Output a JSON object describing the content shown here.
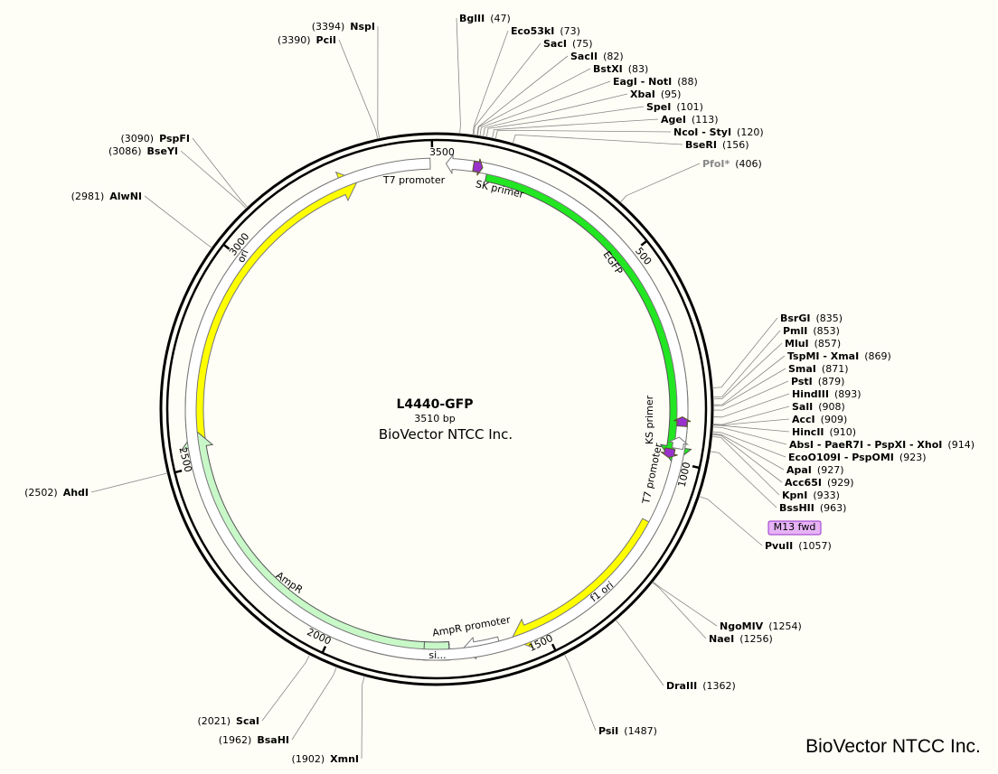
{
  "map": {
    "name": "L4440-GFP",
    "length": "3510 bp",
    "company": "BioVector NTCC Inc.",
    "ticks": [
      500,
      1000,
      1500,
      2000,
      2500,
      3000,
      3500
    ],
    "features": [
      {
        "label": "T7 promoter"
      },
      {
        "label": "SK primer"
      },
      {
        "label": "EGFP"
      },
      {
        "label": "ori"
      },
      {
        "label": "f1 ori"
      },
      {
        "label": "AmpR"
      },
      {
        "label": "AmpR promoter"
      },
      {
        "label": "si..."
      },
      {
        "label": "KS primer"
      },
      {
        "label": "T7 promoter"
      },
      {
        "label": "M13 fwd"
      }
    ],
    "sites": [
      {
        "name": "BglII",
        "pos": "(47)"
      },
      {
        "name": "Eco53kI",
        "pos": "(73)"
      },
      {
        "name": "SacI",
        "pos": "(75)"
      },
      {
        "name": "SacII",
        "pos": "(82)"
      },
      {
        "name": "BstXI",
        "pos": "(83)"
      },
      {
        "name": "EagI - NotI",
        "pos": "(88)"
      },
      {
        "name": "XbaI",
        "pos": "(95)"
      },
      {
        "name": "SpeI",
        "pos": "(101)"
      },
      {
        "name": "AgeI",
        "pos": "(113)"
      },
      {
        "name": "NcoI - StyI",
        "pos": "(120)"
      },
      {
        "name": "BseRI",
        "pos": "(156)"
      },
      {
        "name": "PfoI*",
        "pos": "(406)"
      },
      {
        "name": "BsrGI",
        "pos": "(835)"
      },
      {
        "name": "PmlI",
        "pos": "(853)"
      },
      {
        "name": "MluI",
        "pos": "(857)"
      },
      {
        "name": "TspMI - XmaI",
        "pos": "(869)"
      },
      {
        "name": "SmaI",
        "pos": "(871)"
      },
      {
        "name": "PstI",
        "pos": "(879)"
      },
      {
        "name": "HindIII",
        "pos": "(893)"
      },
      {
        "name": "SalI",
        "pos": "(908)"
      },
      {
        "name": "AccI",
        "pos": "(909)"
      },
      {
        "name": "HincII",
        "pos": "(910)"
      },
      {
        "name": "AbsI - PaeR7I - PspXI - XhoI",
        "pos": "(914)"
      },
      {
        "name": "EcoO109I - PspOMI",
        "pos": "(923)"
      },
      {
        "name": "ApaI",
        "pos": "(927)"
      },
      {
        "name": "Acc65I",
        "pos": "(929)"
      },
      {
        "name": "KpnI",
        "pos": "(933)"
      },
      {
        "name": "BssHII",
        "pos": "(963)"
      },
      {
        "name": "PvuII",
        "pos": "(1057)"
      },
      {
        "name": "NgoMIV",
        "pos": "(1254)"
      },
      {
        "name": "NaeI",
        "pos": "(1256)"
      },
      {
        "name": "DraIII",
        "pos": "(1362)"
      },
      {
        "name": "PsiI",
        "pos": "(1487)"
      },
      {
        "name": "XmnI",
        "pos": "(1902)"
      },
      {
        "name": "BsaHI",
        "pos": "(1962)"
      },
      {
        "name": "ScaI",
        "pos": "(2021)"
      },
      {
        "name": "AhdI",
        "pos": "(2502)"
      },
      {
        "name": "AlwNI",
        "pos": "(2981)"
      },
      {
        "name": "BseYI",
        "pos": "(3086)"
      },
      {
        "name": "PspFI",
        "pos": "(3090)"
      },
      {
        "name": "PciI",
        "pos": "(3390)"
      },
      {
        "name": "NspI",
        "pos": "(3394)"
      }
    ]
  },
  "watermark": "BioVector NTCC Inc."
}
